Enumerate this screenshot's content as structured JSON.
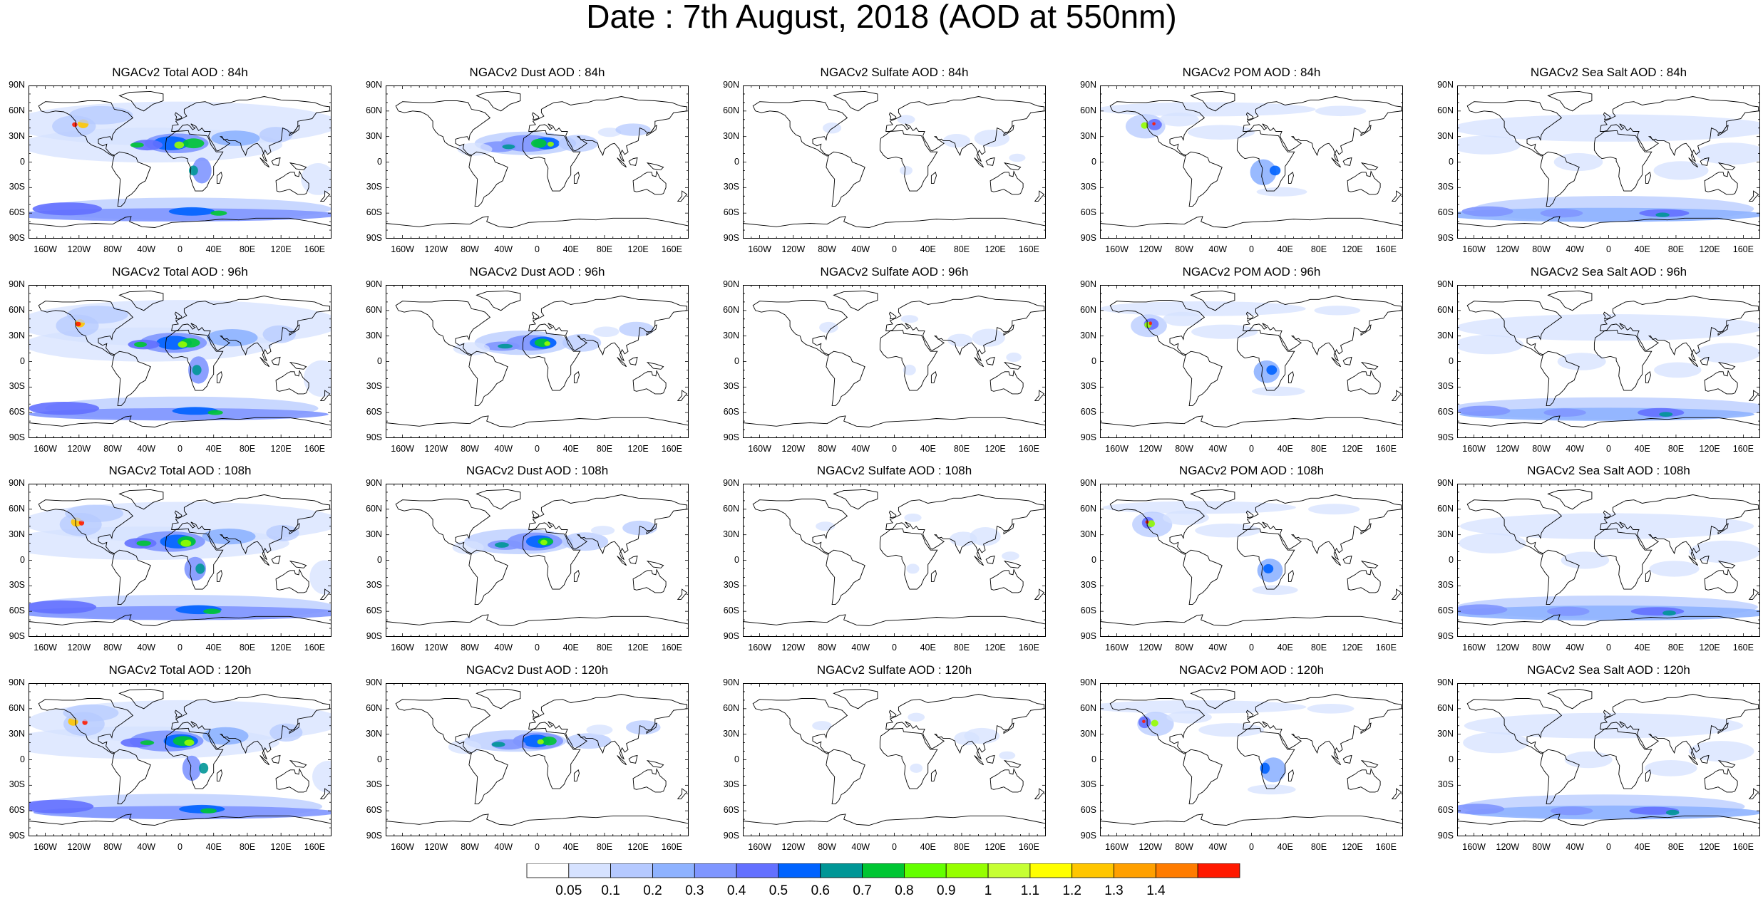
{
  "title": "Date : 7th August, 2018 (AOD at 550nm)",
  "panels": [
    [
      "NGACv2 Total AOD : 84h",
      "NGACv2 Dust AOD : 84h",
      "NGACv2 Sulfate AOD : 84h",
      "NGACv2 POM AOD : 84h",
      "NGACv2 Sea Salt AOD : 84h"
    ],
    [
      "NGACv2 Total AOD : 96h",
      "NGACv2 Dust AOD : 96h",
      "NGACv2 Sulfate AOD : 96h",
      "NGACv2 POM AOD : 96h",
      "NGACv2 Sea Salt AOD : 96h"
    ],
    [
      "NGACv2 Total AOD : 108h",
      "NGACv2 Dust AOD : 108h",
      "NGACv2 Sulfate AOD : 108h",
      "NGACv2 POM AOD : 108h",
      "NGACv2 Sea Salt AOD : 108h"
    ],
    [
      "NGACv2 Total AOD : 120h",
      "NGACv2 Dust AOD : 120h",
      "NGACv2 Sulfate AOD : 120h",
      "NGACv2 POM AOD : 120h",
      "NGACv2 Sea Salt  AOD : 120h"
    ]
  ],
  "lat_labels": [
    "90N",
    "60N",
    "30N",
    "0",
    "30S",
    "60S",
    "90S"
  ],
  "lon_labels": [
    "160W",
    "120W",
    "80W",
    "40W",
    "0",
    "40E",
    "80E",
    "120E",
    "160E"
  ],
  "colorbar": {
    "labels": [
      "0.05",
      "0.1",
      "0.2",
      "0.3",
      "0.4",
      "0.5",
      "0.6",
      "0.7",
      "0.8",
      "0.9",
      "1",
      "1.1",
      "1.2",
      "1.3",
      "1.4"
    ],
    "colors": [
      "#ffffff",
      "#d6e2ff",
      "#b5c9ff",
      "#8eb2ff",
      "#7f96ff",
      "#6370ff",
      "#0063ff",
      "#009696",
      "#00c633",
      "#63ff00",
      "#96ff00",
      "#c6ff33",
      "#ffff00",
      "#ffc600",
      "#ffa000",
      "#ff7c00",
      "#ff1900"
    ]
  }
}
